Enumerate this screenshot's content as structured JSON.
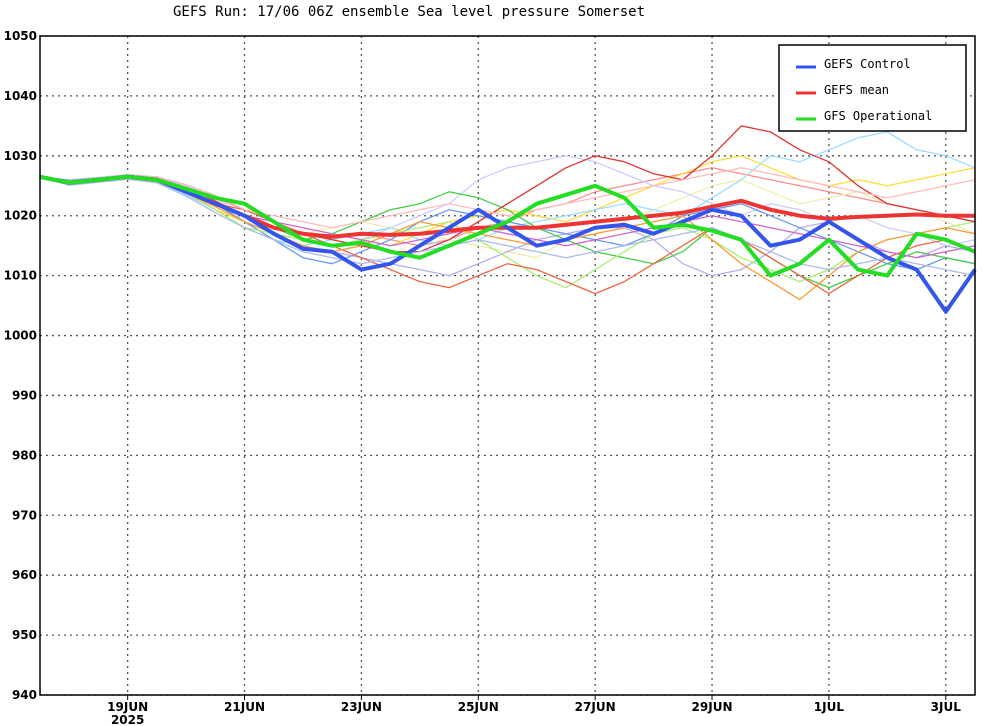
{
  "chart_data": {
    "type": "line",
    "title": "GEFS Run: 17/06 06Z ensemble Sea level pressure Somerset",
    "xlabel": "",
    "ylabel": "",
    "ylim": [
      940,
      1050
    ],
    "yticks": [
      940,
      950,
      960,
      970,
      980,
      990,
      1000,
      1010,
      1020,
      1030,
      1040,
      1050
    ],
    "xlim": [
      "2025-06-17T12:00",
      "2025-07-03T12:00"
    ],
    "xticks": [
      {
        "date": "2025-06-19",
        "label": "19JUN",
        "sublabel": "2025"
      },
      {
        "date": "2025-06-21",
        "label": "21JUN",
        "sublabel": ""
      },
      {
        "date": "2025-06-23",
        "label": "23JUN",
        "sublabel": ""
      },
      {
        "date": "2025-06-25",
        "label": "25JUN",
        "sublabel": ""
      },
      {
        "date": "2025-06-27",
        "label": "27JUN",
        "sublabel": ""
      },
      {
        "date": "2025-06-29",
        "label": "29JUN",
        "sublabel": ""
      },
      {
        "date": "2025-07-01",
        "label": "1JUL",
        "sublabel": ""
      },
      {
        "date": "2025-07-03",
        "label": "3JUL",
        "sublabel": ""
      }
    ],
    "grid": true,
    "legend_position": "top-right",
    "x": [
      "2025-06-17T12:00",
      "2025-06-18T00:00",
      "2025-06-18T12:00",
      "2025-06-19T00:00",
      "2025-06-19T12:00",
      "2025-06-20T00:00",
      "2025-06-20T12:00",
      "2025-06-21T00:00",
      "2025-06-21T12:00",
      "2025-06-22T00:00",
      "2025-06-22T12:00",
      "2025-06-23T00:00",
      "2025-06-23T12:00",
      "2025-06-24T00:00",
      "2025-06-24T12:00",
      "2025-06-25T00:00",
      "2025-06-25T12:00",
      "2025-06-26T00:00",
      "2025-06-26T12:00",
      "2025-06-27T00:00",
      "2025-06-27T12:00",
      "2025-06-28T00:00",
      "2025-06-28T12:00",
      "2025-06-29T00:00",
      "2025-06-29T12:00",
      "2025-06-30T00:00",
      "2025-06-30T12:00",
      "2025-07-01T00:00",
      "2025-07-01T12:00",
      "2025-07-02T00:00",
      "2025-07-02T12:00",
      "2025-07-03T00:00",
      "2025-07-03T12:00"
    ],
    "series": [
      {
        "name": "GEFS Control",
        "color": "#3355ee",
        "width": 4,
        "values": [
          1026.5,
          1025.5,
          1026,
          1026.5,
          1026,
          1024,
          1022,
          1020,
          1017,
          1014.5,
          1014,
          1011,
          1012,
          1015,
          1018,
          1021,
          1018,
          1015,
          1016,
          1018,
          1018.5,
          1017,
          1019,
          1021,
          1020,
          1015,
          1016,
          1019,
          1016,
          1013,
          1011,
          1004,
          1011
        ]
      },
      {
        "name": "GEFS mean",
        "color": "#ee3333",
        "width": 4,
        "values": [
          1026.5,
          1025.5,
          1026,
          1026.5,
          1026,
          1024,
          1022,
          1020,
          1018,
          1017,
          1016.5,
          1017,
          1016.8,
          1017,
          1017.5,
          1018,
          1018,
          1018,
          1018.5,
          1019,
          1019.5,
          1020,
          1020.5,
          1021.5,
          1022.5,
          1021,
          1020,
          1019.5,
          1019.8,
          1020,
          1020.2,
          1020,
          1020
        ]
      },
      {
        "name": "GFS Operational",
        "color": "#22dd22",
        "width": 4,
        "values": [
          1026.5,
          1025.5,
          1026,
          1026.5,
          1026,
          1024.5,
          1023,
          1022,
          1019,
          1016,
          1015,
          1015.5,
          1014,
          1013,
          1015,
          1017,
          1019,
          1022,
          1023.5,
          1025,
          1023,
          1018,
          1018.5,
          1017.5,
          1016,
          1010,
          1012,
          1016,
          1011,
          1010,
          1017,
          1016,
          1014
        ]
      }
    ],
    "members": [
      {
        "color": "#ff8c8c",
        "values": [
          1026.5,
          1025.8,
          1026.2,
          1026.8,
          1026.4,
          1025,
          1023,
          1021,
          1019,
          1017,
          1016,
          1017,
          1016,
          1015,
          1016,
          1018,
          1019,
          1021,
          1022,
          1024,
          1025,
          1026,
          1027,
          1028,
          1027,
          1026,
          1025,
          1024,
          1023,
          1022,
          1021,
          1020,
          1019
        ]
      },
      {
        "color": "#ffdd33",
        "values": [
          1026.5,
          1025.4,
          1026,
          1026.6,
          1025.8,
          1024,
          1021,
          1019,
          1017,
          1016,
          1017,
          1016,
          1015,
          1017,
          1019,
          1020,
          1021,
          1020,
          1019,
          1021,
          1023,
          1025,
          1027,
          1029,
          1030,
          1028,
          1026,
          1025,
          1026,
          1025,
          1026,
          1027,
          1028
        ]
      },
      {
        "color": "#eeeeaa",
        "values": [
          1026.5,
          1025.6,
          1026,
          1026.4,
          1026.2,
          1024.5,
          1022,
          1020,
          1018,
          1017,
          1018,
          1019,
          1018,
          1017,
          1016,
          1015,
          1014,
          1013,
          1016,
          1017,
          1019,
          1021,
          1023,
          1025,
          1026,
          1024,
          1022,
          1023,
          1024,
          1022,
          1021,
          1019,
          1017
        ]
      },
      {
        "color": "#ccccff",
        "values": [
          1026.5,
          1026,
          1026.4,
          1026.9,
          1026.5,
          1025,
          1023,
          1020,
          1018,
          1016,
          1015,
          1016,
          1018,
          1020,
          1022,
          1026,
          1028,
          1029,
          1030,
          1029,
          1027,
          1025,
          1024,
          1022,
          1020,
          1022,
          1021,
          1019,
          1020,
          1018,
          1017,
          1015,
          1016
        ]
      },
      {
        "color": "#bbaaee",
        "values": [
          1026.5,
          1025.7,
          1026.1,
          1026.7,
          1026.3,
          1024.2,
          1022,
          1019,
          1017,
          1015,
          1014,
          1013,
          1012,
          1011,
          1010,
          1012,
          1014,
          1016,
          1017,
          1018,
          1018,
          1016,
          1012,
          1010,
          1011,
          1014,
          1018,
          1019,
          1016,
          1014,
          1013,
          1015,
          1014
        ]
      },
      {
        "color": "#99ddff",
        "values": [
          1026.5,
          1025.3,
          1025.9,
          1026.3,
          1025.6,
          1023.5,
          1021,
          1018,
          1016,
          1015,
          1016,
          1017,
          1018,
          1016,
          1015,
          1016,
          1018,
          1019,
          1020,
          1021,
          1022,
          1021,
          1020,
          1023,
          1026,
          1030,
          1029,
          1031,
          1033,
          1034,
          1031,
          1030,
          1028
        ]
      },
      {
        "color": "#6699ee",
        "values": [
          1026.5,
          1025.9,
          1026.3,
          1026.6,
          1026.1,
          1024.3,
          1022,
          1019,
          1016,
          1013,
          1012,
          1014,
          1016,
          1019,
          1021,
          1020,
          1019,
          1018,
          1017,
          1016,
          1015,
          1017,
          1020,
          1021,
          1022,
          1020,
          1018,
          1016,
          1014,
          1012,
          1011,
          1013,
          1012
        ]
      },
      {
        "color": "#44cc44",
        "values": [
          1026.5,
          1025.5,
          1025.8,
          1026.5,
          1026,
          1024.4,
          1022,
          1020,
          1018,
          1016,
          1017,
          1019,
          1021,
          1022,
          1024,
          1023,
          1021,
          1018,
          1016,
          1014,
          1013,
          1012,
          1014,
          1018,
          1016,
          1013,
          1010,
          1008,
          1010,
          1012,
          1014,
          1013,
          1012
        ]
      },
      {
        "color": "#aaee77",
        "values": [
          1026.5,
          1025.2,
          1025.7,
          1026.2,
          1025.7,
          1023.8,
          1021,
          1018,
          1017,
          1016,
          1015,
          1016,
          1017,
          1018,
          1019,
          1016,
          1013,
          1010,
          1008,
          1011,
          1014,
          1017,
          1018,
          1016,
          1013,
          1011,
          1009,
          1011,
          1014,
          1016,
          1017,
          1018,
          1019
        ]
      },
      {
        "color": "#ee6644",
        "values": [
          1026.5,
          1025.5,
          1025.9,
          1026.4,
          1026,
          1024,
          1022,
          1021,
          1019,
          1017,
          1015,
          1013,
          1011,
          1009,
          1008,
          1010,
          1012,
          1011,
          1009,
          1007,
          1009,
          1012,
          1015,
          1018,
          1016,
          1013,
          1010,
          1007,
          1010,
          1013,
          1015,
          1016,
          1014
        ]
      },
      {
        "color": "#dd3333",
        "values": [
          1026.5,
          1025.6,
          1026.1,
          1026.7,
          1026.2,
          1024.6,
          1022.5,
          1020,
          1018,
          1017,
          1016,
          1015,
          1014,
          1014,
          1016,
          1019,
          1022,
          1025,
          1028,
          1030,
          1029,
          1027,
          1026,
          1030,
          1035,
          1034,
          1031,
          1029,
          1025,
          1022,
          1021,
          1020,
          1019
        ]
      },
      {
        "color": "#ff9933",
        "values": [
          1026.5,
          1025.4,
          1025.8,
          1026.3,
          1025.9,
          1023.8,
          1021.5,
          1019,
          1017,
          1015,
          1014,
          1015,
          1017,
          1019,
          1018,
          1017,
          1016,
          1015,
          1016,
          1017,
          1018,
          1019,
          1020,
          1016,
          1012,
          1009,
          1006,
          1010,
          1014,
          1016,
          1017,
          1018,
          1017
        ]
      },
      {
        "color": "#cc66cc",
        "values": [
          1026.5,
          1025.7,
          1026.2,
          1026.6,
          1026.2,
          1024.5,
          1022,
          1020,
          1019,
          1018,
          1017,
          1016,
          1015,
          1016,
          1017,
          1018,
          1017,
          1016,
          1015,
          1016,
          1017,
          1018,
          1019,
          1020,
          1019,
          1018,
          1017,
          1016,
          1015,
          1014,
          1013,
          1014,
          1015
        ]
      },
      {
        "color": "#ffbbbb",
        "values": [
          1026.5,
          1025.8,
          1026.3,
          1026.8,
          1026.5,
          1025.2,
          1023.4,
          1021,
          1020,
          1019,
          1018,
          1019,
          1020,
          1021,
          1022,
          1021,
          1020,
          1021,
          1022,
          1023,
          1024,
          1025,
          1026,
          1027,
          1028,
          1027,
          1026,
          1025,
          1024,
          1023,
          1024,
          1025,
          1026
        ]
      },
      {
        "color": "#aabbee",
        "values": [
          1026.5,
          1025.1,
          1025.6,
          1026.1,
          1025.5,
          1023.3,
          1020.5,
          1018,
          1016,
          1014,
          1013,
          1012,
          1013,
          1014,
          1015,
          1016,
          1015,
          1014,
          1013,
          1014,
          1015,
          1016,
          1017,
          1018,
          1016,
          1014,
          1012,
          1011,
          1012,
          1013,
          1012,
          1011,
          1010
        ]
      }
    ]
  }
}
